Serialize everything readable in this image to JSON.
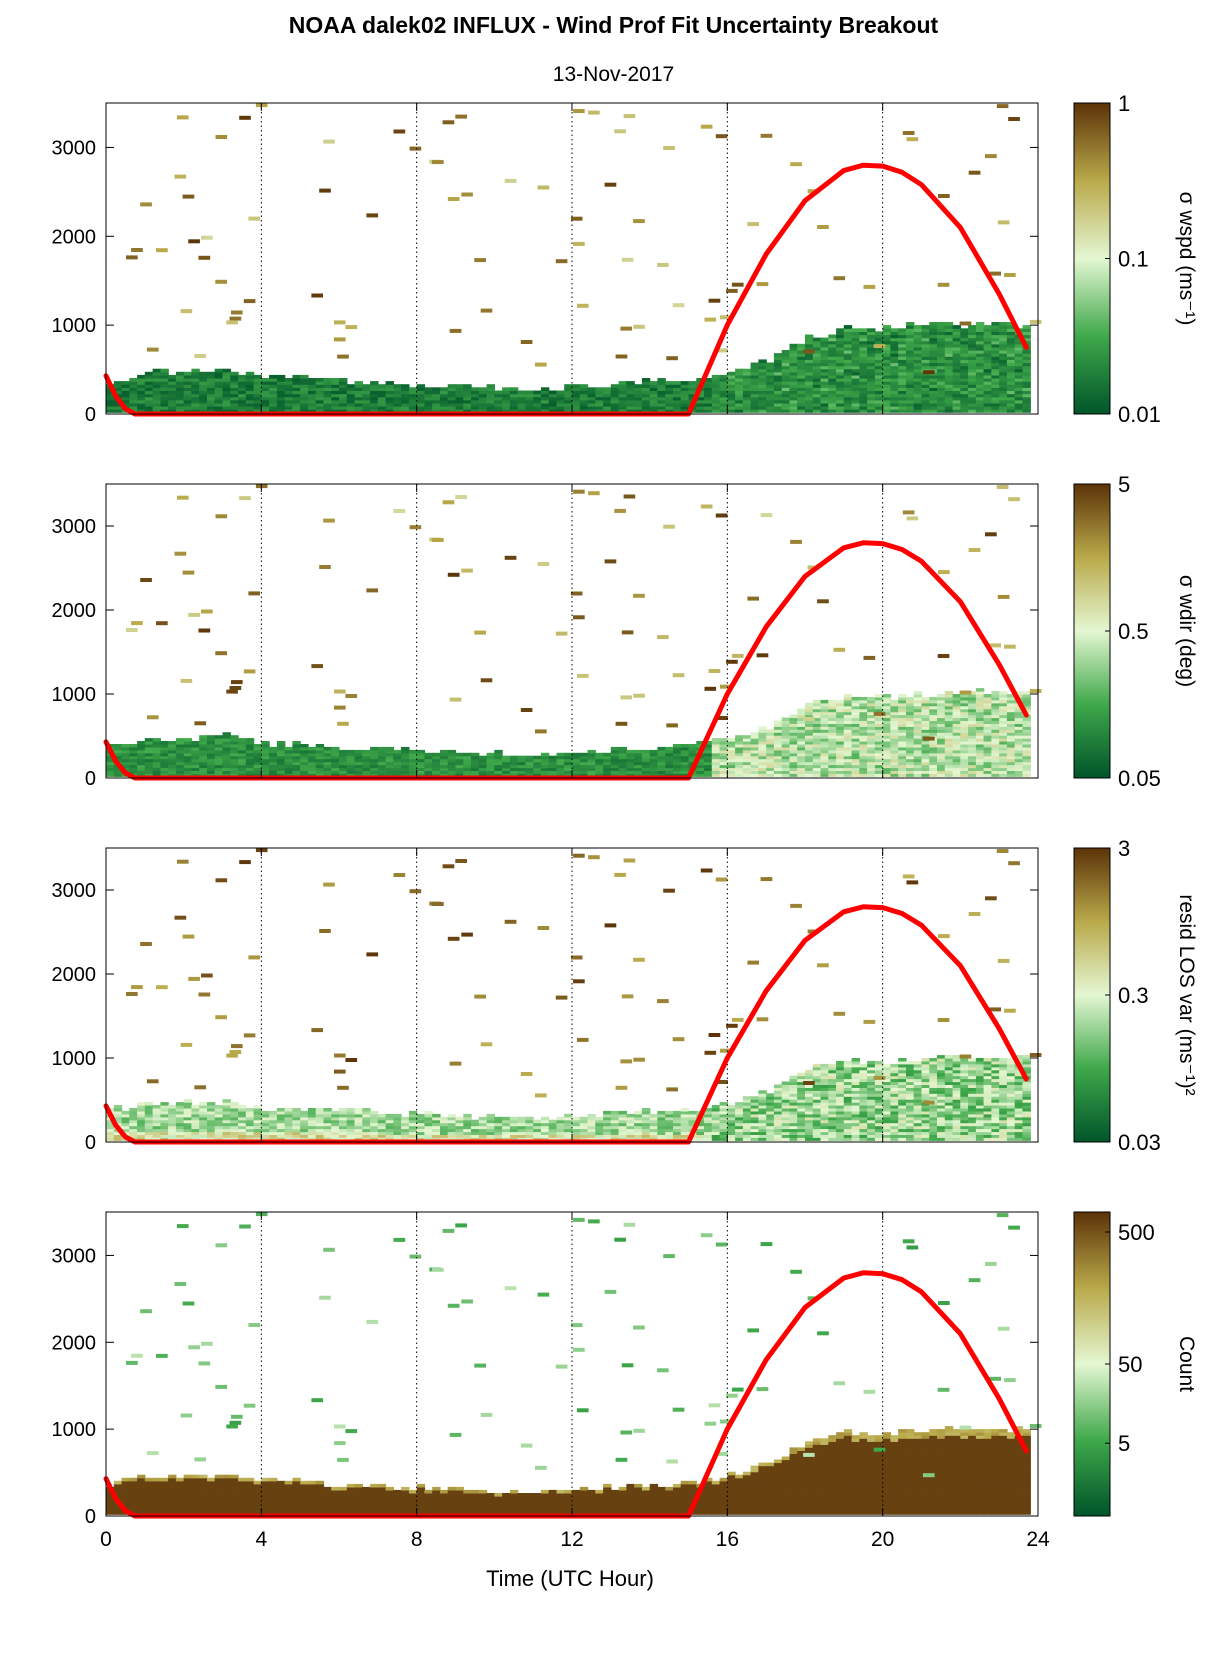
{
  "figure": {
    "title": "NOAA dalek02 INFLUX - Wind Prof Fit Uncertainty Breakout",
    "subtitle": "13-Nov-2017",
    "xlabel": "Time (UTC Hour)"
  },
  "colors": {
    "low": "#00552a",
    "mid_low": "#3fa84a",
    "mid": "#e4f7d2",
    "mid_high": "#b9a94a",
    "high": "#5c3308",
    "sun_curve": "#ff0000",
    "grid": "#000000"
  },
  "chart_data": [
    {
      "type": "heatmap",
      "colorbar_label": "σ wspd (ms⁻¹)",
      "colorbar_ticks": [
        "1",
        "0.1",
        "0.01"
      ],
      "x_ticks": [
        "0",
        "4",
        "8",
        "12",
        "16",
        "20",
        "24"
      ],
      "y_ticks": [
        "0",
        "1000",
        "2000",
        "3000"
      ],
      "xlim": [
        0,
        24
      ],
      "ylim": [
        0,
        3500
      ],
      "value_scale": "log",
      "value_range": [
        0.01,
        1
      ],
      "field": "wspd",
      "grid": "vertical-dotted"
    },
    {
      "type": "heatmap",
      "colorbar_label": "σ wdir (deg)",
      "colorbar_ticks": [
        "5",
        "0.5",
        "0.05"
      ],
      "x_ticks": [
        "0",
        "4",
        "8",
        "12",
        "16",
        "20",
        "24"
      ],
      "y_ticks": [
        "0",
        "1000",
        "2000",
        "3000"
      ],
      "xlim": [
        0,
        24
      ],
      "ylim": [
        0,
        3500
      ],
      "value_scale": "log",
      "value_range": [
        0.05,
        5
      ],
      "field": "wdir",
      "grid": "vertical-dotted"
    },
    {
      "type": "heatmap",
      "colorbar_label": "resid LOS var (ms⁻¹)²",
      "colorbar_ticks": [
        "3",
        "0.3",
        "0.03"
      ],
      "x_ticks": [
        "0",
        "4",
        "8",
        "12",
        "16",
        "20",
        "24"
      ],
      "y_ticks": [
        "0",
        "1000",
        "2000",
        "3000"
      ],
      "xlim": [
        0,
        24
      ],
      "ylim": [
        0,
        3500
      ],
      "value_scale": "log",
      "value_range": [
        0.03,
        3
      ],
      "field": "resid",
      "grid": "vertical-dotted"
    },
    {
      "type": "heatmap",
      "colorbar_label": "Count",
      "colorbar_ticks": [
        "500",
        "50",
        "5"
      ],
      "x_ticks": [
        "0",
        "4",
        "8",
        "12",
        "16",
        "20",
        "24"
      ],
      "y_ticks": [
        "0",
        "1000",
        "2000",
        "3000"
      ],
      "xlim": [
        0,
        24
      ],
      "ylim": [
        0,
        3500
      ],
      "value_scale": "log",
      "value_range": [
        1,
        500
      ],
      "field": "count",
      "grid": "vertical-dotted"
    }
  ],
  "boundary_layer_top": {
    "x": [
      0,
      1,
      2,
      3,
      4,
      5,
      6,
      7,
      8,
      9,
      10,
      11,
      12,
      13,
      14,
      15,
      16,
      17,
      18,
      19,
      20,
      21,
      22,
      23,
      23.7
    ],
    "y": [
      350,
      450,
      450,
      480,
      400,
      380,
      350,
      330,
      320,
      300,
      280,
      250,
      300,
      320,
      340,
      370,
      450,
      600,
      850,
      950,
      950,
      970,
      1000,
      1000,
      980
    ]
  },
  "sun_elevation_curve": {
    "x": [
      0,
      0.25,
      0.5,
      0.75,
      15,
      15.5,
      16,
      17,
      18,
      19,
      19.5,
      20,
      20.5,
      21,
      22,
      23,
      23.7
    ],
    "y": [
      430,
      200,
      60,
      0,
      0,
      500,
      1000,
      1800,
      2400,
      2740,
      2800,
      2790,
      2720,
      2580,
      2100,
      1350,
      750
    ]
  }
}
